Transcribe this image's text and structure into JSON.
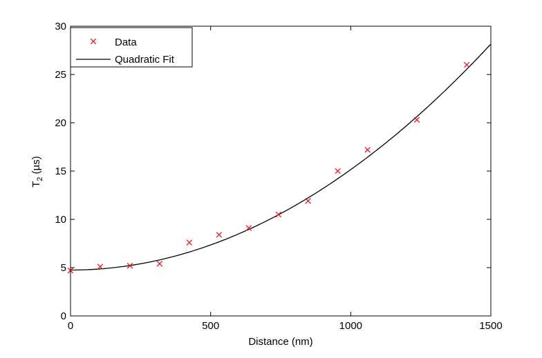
{
  "chart_data": {
    "type": "scatter",
    "xlabel": "Distance (nm)",
    "ylabel_main": "T",
    "ylabel_sub": "2",
    "ylabel_unit": " (µs)",
    "xlim": [
      0,
      1500
    ],
    "ylim": [
      0,
      30
    ],
    "xticks": [
      0,
      500,
      1000,
      1500
    ],
    "yticks": [
      0,
      5,
      10,
      15,
      20,
      25,
      30
    ],
    "grid": false,
    "legend_position": "top-left",
    "series": [
      {
        "name": "Data",
        "kind": "scatter",
        "marker": "x",
        "color": "#e8141c",
        "x": [
          0,
          106,
          212,
          318,
          424,
          530,
          636,
          742,
          848,
          954,
          1060,
          1236,
          1414
        ],
        "y": [
          4.7,
          5.1,
          5.2,
          5.4,
          7.6,
          8.4,
          9.1,
          10.5,
          11.9,
          15.0,
          17.2,
          20.3,
          26.0
        ]
      },
      {
        "name": "Quadratic Fit",
        "kind": "line",
        "color": "#000000",
        "coefficients": {
          "a": 1.04e-05,
          "b": 0.0,
          "c": 4.75
        },
        "x_range": [
          0,
          1500
        ]
      }
    ]
  }
}
